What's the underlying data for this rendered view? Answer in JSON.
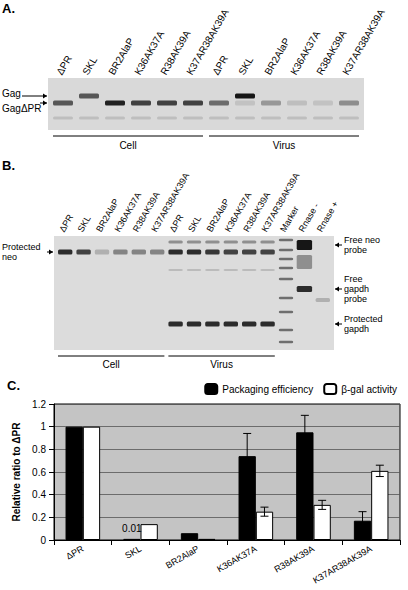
{
  "panel_a": {
    "label": "A.",
    "groups": [
      {
        "name": "Cell",
        "lanes": [
          "ΔPR",
          "SKL",
          "BR2AlaP",
          "K36AK37A",
          "R38AK39A",
          "K37AR38AK39A"
        ]
      },
      {
        "name": "Virus",
        "lanes": [
          "ΔPR",
          "SKL",
          "BR2AlaP",
          "K36AK37A",
          "R38AK39A",
          "K37AR38AK39A"
        ]
      }
    ],
    "band_labels": [
      "Gag",
      "GagΔPR"
    ]
  },
  "panel_b": {
    "label": "B.",
    "groups": [
      {
        "name": "Cell",
        "lanes": [
          "ΔPR",
          "SKL",
          "BR2AlaP",
          "K36AK37A",
          "R38AK39A",
          "K37AR38AK39A"
        ]
      },
      {
        "name": "Virus",
        "lanes": [
          "ΔPR",
          "SKL",
          "BR2AlaP",
          "K36AK37A",
          "R38AK39A",
          "K37AR38AK39A"
        ]
      }
    ],
    "extra_lanes": [
      "Marker",
      "Rnase -",
      "Rnase +"
    ],
    "left_labels": [
      "Protected neo"
    ],
    "right_labels": [
      "Free neo probe",
      "Free gapdh probe",
      "Protected gapdh"
    ]
  },
  "chart_data": {
    "type": "bar",
    "panel_label": "C.",
    "y_label": "Relative ratio to ΔPR",
    "categories": [
      "ΔPR",
      "SKL",
      "BR2AlaP",
      "K36AK37A",
      "R38AK39A",
      "K37AR38AK39A"
    ],
    "ylim": [
      0,
      1.2
    ],
    "yticks": [
      0,
      0.2,
      0.4,
      0.6,
      0.8,
      1,
      1.2
    ],
    "grid": true,
    "legend": "top",
    "series": [
      {
        "name": "Packaging efficiency",
        "color": "#000000",
        "values": [
          1,
          0.01,
          0.06,
          0.74,
          0.95,
          0.17
        ],
        "value_labels": [
          null,
          "0.01",
          null,
          null,
          null,
          null
        ],
        "errors": [
          null,
          null,
          null,
          0.2,
          0.15,
          0.08
        ]
      },
      {
        "name": "β-gal activity",
        "color": "#ffffff",
        "values": [
          1,
          0.14,
          0.01,
          0.25,
          0.31,
          0.61
        ],
        "errors": [
          null,
          null,
          null,
          0.04,
          0.04,
          0.05
        ]
      }
    ]
  }
}
